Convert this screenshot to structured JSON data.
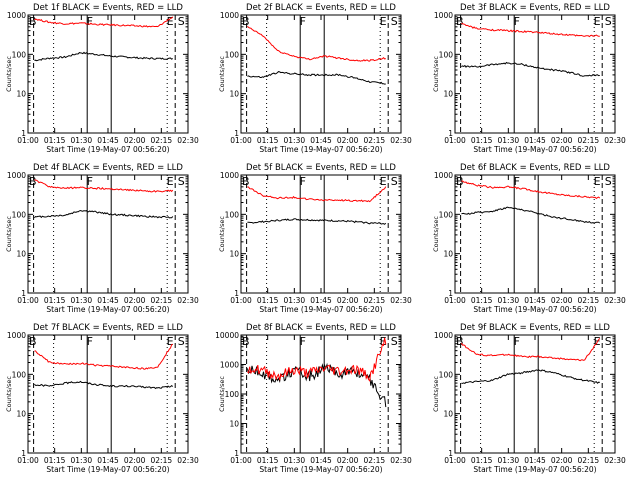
{
  "page": {
    "background": "#ffffff"
  },
  "colors": {
    "events": "#000000",
    "lld": "#ff0000",
    "axis": "#000000"
  },
  "chart_data": [
    {
      "type": "line",
      "title": "Det 1f BLACK = Events, RED = LLD",
      "xlabel": "Start Time (19-May-07 00:56:20)",
      "ylabel": "Counts/sec",
      "x_ticks": [
        "01:00",
        "01:15",
        "01:30",
        "01:45",
        "02:00",
        "02:15",
        "02:30"
      ],
      "y_ticks": [
        "1",
        "10",
        "100",
        "1000"
      ],
      "ylim": [
        1,
        1000
      ],
      "yscale": "log",
      "markers": [
        "B",
        "F",
        "E",
        "S"
      ],
      "series": [
        {
          "color": "#000000",
          "values": [
            70,
            80,
            85,
            110,
            100,
            90,
            85,
            80,
            78,
            78
          ]
        },
        {
          "color": "#ff0000",
          "values": [
            800,
            650,
            600,
            620,
            580,
            560,
            540,
            520,
            500,
            900
          ]
        }
      ]
    },
    {
      "type": "line",
      "title": "Det 2f BLACK = Events, RED = LLD",
      "xlabel": "Start Time (19-May-07 00:56:20)",
      "ylabel": "Counts/sec",
      "x_ticks": [
        "01:00",
        "01:15",
        "01:30",
        "01:45",
        "02:00",
        "02:15",
        "02:30"
      ],
      "y_ticks": [
        "1",
        "10",
        "100",
        "1000"
      ],
      "ylim": [
        1,
        1000
      ],
      "yscale": "log",
      "markers": [
        "B",
        "F",
        "E",
        "S"
      ],
      "series": [
        {
          "color": "#000000",
          "values": [
            28,
            26,
            35,
            32,
            30,
            30,
            30,
            25,
            20,
            18
          ]
        },
        {
          "color": "#ff0000",
          "values": [
            500,
            300,
            120,
            90,
            75,
            90,
            80,
            70,
            70,
            80
          ]
        }
      ]
    },
    {
      "type": "line",
      "title": "Det 3f BLACK = Events, RED = LLD",
      "xlabel": "Start Time (19-May-07 00:56:20)",
      "ylabel": "Counts/sec",
      "x_ticks": [
        "01:00",
        "01:15",
        "01:30",
        "01:45",
        "02:00",
        "02:15",
        "02:30"
      ],
      "y_ticks": [
        "1",
        "10",
        "100",
        "1000"
      ],
      "ylim": [
        1,
        1000
      ],
      "yscale": "log",
      "markers": [
        "B",
        "F",
        "E",
        "S"
      ],
      "series": [
        {
          "color": "#000000",
          "values": [
            50,
            48,
            55,
            60,
            55,
            45,
            40,
            35,
            28,
            30
          ]
        },
        {
          "color": "#ff0000",
          "values": [
            600,
            450,
            420,
            400,
            380,
            360,
            330,
            310,
            290,
            300
          ]
        }
      ]
    },
    {
      "type": "line",
      "title": "Det 4f BLACK = Events, RED = LLD",
      "xlabel": "Start Time (19-May-07 00:56:20)",
      "ylabel": "Counts/sec",
      "x_ticks": [
        "01:00",
        "01:15",
        "01:30",
        "01:45",
        "02:00",
        "02:15",
        "02:30"
      ],
      "y_ticks": [
        "1",
        "10",
        "100",
        "1000"
      ],
      "ylim": [
        1,
        1000
      ],
      "yscale": "log",
      "markers": [
        "B",
        "F",
        "E",
        "S"
      ],
      "series": [
        {
          "color": "#000000",
          "values": [
            85,
            90,
            95,
            125,
            115,
            100,
            95,
            90,
            85,
            85
          ]
        },
        {
          "color": "#ff0000",
          "values": [
            750,
            500,
            460,
            480,
            460,
            440,
            420,
            400,
            380,
            400
          ]
        }
      ]
    },
    {
      "type": "line",
      "title": "Det 5f BLACK = Events, RED = LLD",
      "xlabel": "Start Time (19-May-07 00:56:20)",
      "ylabel": "Counts/sec",
      "x_ticks": [
        "01:00",
        "01:15",
        "01:30",
        "01:45",
        "02:00",
        "02:15",
        "02:30"
      ],
      "y_ticks": [
        "1",
        "10",
        "100",
        "1000"
      ],
      "ylim": [
        1,
        1000
      ],
      "yscale": "log",
      "markers": [
        "B",
        "F",
        "E",
        "S"
      ],
      "series": [
        {
          "color": "#000000",
          "values": [
            60,
            65,
            70,
            75,
            72,
            70,
            68,
            65,
            60,
            58
          ]
        },
        {
          "color": "#ff0000",
          "values": [
            500,
            300,
            260,
            270,
            240,
            230,
            230,
            220,
            220,
            500
          ]
        }
      ]
    },
    {
      "type": "line",
      "title": "Det 6f BLACK = Events, RED = LLD",
      "xlabel": "Start Time (19-May-07 00:56:20)",
      "ylabel": "Counts/sec",
      "x_ticks": [
        "01:00",
        "01:15",
        "01:30",
        "01:45",
        "02:00",
        "02:15",
        "02:30"
      ],
      "y_ticks": [
        "1",
        "10",
        "100",
        "1000"
      ],
      "ylim": [
        1,
        1000
      ],
      "yscale": "log",
      "markers": [
        "B",
        "F",
        "E",
        "S"
      ],
      "series": [
        {
          "color": "#000000",
          "values": [
            100,
            110,
            120,
            150,
            130,
            105,
            85,
            75,
            65,
            60
          ]
        },
        {
          "color": "#ff0000",
          "values": [
            700,
            550,
            480,
            500,
            450,
            380,
            330,
            300,
            280,
            260
          ]
        }
      ]
    },
    {
      "type": "line",
      "title": "Det 7f BLACK = Events, RED = LLD",
      "xlabel": "Start Time (19-May-07 00:56:20)",
      "ylabel": "Counts/sec",
      "x_ticks": [
        "01:00",
        "01:15",
        "01:30",
        "01:45",
        "02:00",
        "02:15",
        "02:30"
      ],
      "y_ticks": [
        "1",
        "10",
        "100",
        "1000"
      ],
      "ylim": [
        1,
        1000
      ],
      "yscale": "log",
      "markers": [
        "B",
        "F",
        "E",
        "S"
      ],
      "series": [
        {
          "color": "#000000",
          "values": [
            55,
            50,
            60,
            65,
            55,
            50,
            50,
            48,
            45,
            50
          ]
        },
        {
          "color": "#ff0000",
          "values": [
            400,
            200,
            180,
            190,
            170,
            160,
            150,
            140,
            150,
            600
          ]
        }
      ]
    },
    {
      "type": "line",
      "title": "Det 8f BLACK = Events, RED = LLD",
      "xlabel": "Start Time (19-May-07 00:56:20)",
      "ylabel": "Counts/sec",
      "x_ticks": [
        "01:00",
        "01:15",
        "01:30",
        "01:45",
        "02:00",
        "02:15",
        "02:30"
      ],
      "y_ticks": [
        "1",
        "10",
        "100",
        "1000",
        "10000"
      ],
      "ylim": [
        1,
        10000
      ],
      "yscale": "log",
      "markers": [
        "B",
        "F",
        "E",
        "S"
      ],
      "series": [
        {
          "color": "#000000",
          "values": [
            700,
            500,
            300,
            600,
            400,
            700,
            500,
            600,
            300,
            50
          ]
        },
        {
          "color": "#ff0000",
          "values": [
            800,
            600,
            400,
            650,
            500,
            750,
            600,
            700,
            400,
            7000
          ]
        }
      ]
    },
    {
      "type": "line",
      "title": "Det 9f BLACK = Events, RED = LLD",
      "xlabel": "Start Time (19-May-07 00:56:20)",
      "ylabel": "Counts/sec",
      "x_ticks": [
        "01:00",
        "01:15",
        "01:30",
        "01:45",
        "02:00",
        "02:15",
        "02:30"
      ],
      "y_ticks": [
        "1",
        "10",
        "100",
        "1000"
      ],
      "ylim": [
        1,
        1000
      ],
      "yscale": "log",
      "markers": [
        "B",
        "F",
        "E",
        "S"
      ],
      "series": [
        {
          "color": "#000000",
          "values": [
            60,
            65,
            70,
            100,
            110,
            130,
            110,
            85,
            70,
            60
          ]
        },
        {
          "color": "#ff0000",
          "values": [
            600,
            320,
            300,
            320,
            280,
            280,
            260,
            240,
            230,
            800
          ]
        }
      ]
    }
  ]
}
